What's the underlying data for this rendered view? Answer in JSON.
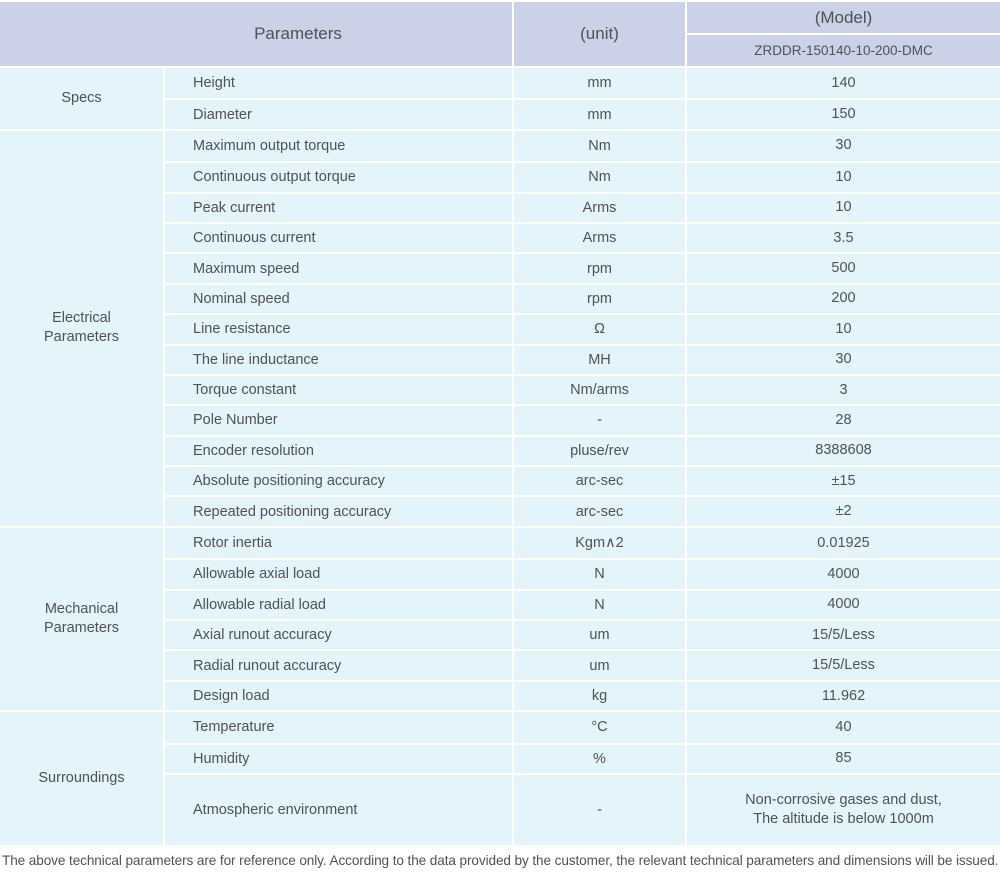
{
  "colors": {
    "header_bg": "#cbd1e7",
    "body_bg": "#e3f4fb",
    "grid": "#ffffff",
    "text": "#4f5256"
  },
  "table": {
    "header": {
      "parameters_label": "Parameters",
      "unit_label": "(unit)",
      "model_label": "(Model)",
      "model_value": "ZRDDR-150140-10-200-DMC"
    },
    "sections": [
      {
        "label_lines": [
          "Specs"
        ],
        "rows": [
          {
            "param": "Height",
            "unit": "mm",
            "value": "140"
          },
          {
            "param": "Diameter",
            "unit": "mm",
            "value": "150"
          }
        ]
      },
      {
        "label_lines": [
          "Electrical",
          "Parameters"
        ],
        "rows": [
          {
            "param": "Maximum output torque",
            "unit": "Nm",
            "value": "30"
          },
          {
            "param": "Continuous output torque",
            "unit": "Nm",
            "value": "10"
          },
          {
            "param": "Peak current",
            "unit": "Arms",
            "value": "10"
          },
          {
            "param": "Continuous current",
            "unit": "Arms",
            "value": "3.5"
          },
          {
            "param": "Maximum speed",
            "unit": "rpm",
            "value": "500"
          },
          {
            "param": "Nominal speed",
            "unit": "rpm",
            "value": "200"
          },
          {
            "param": "Line resistance",
            "unit": "Ω",
            "value": "10"
          },
          {
            "param": "The line inductance",
            "unit": "MH",
            "value": "30"
          },
          {
            "param": "Torque constant",
            "unit": "Nm/arms",
            "value": "3"
          },
          {
            "param": "Pole Number",
            "unit": "-",
            "value": "28"
          },
          {
            "param": "Encoder resolution",
            "unit": "pluse/rev",
            "value": "8388608"
          },
          {
            "param": "Absolute positioning accuracy",
            "unit": "arc-sec",
            "value": "±15"
          },
          {
            "param": "Repeated positioning accuracy",
            "unit": "arc-sec",
            "value": "±2"
          }
        ]
      },
      {
        "label_lines": [
          "Mechanical",
          "Parameters"
        ],
        "rows": [
          {
            "param": "Rotor inertia",
            "unit": "Kgm∧2",
            "value": "0.01925"
          },
          {
            "param": "Allowable axial load",
            "unit": "N",
            "value": "4000"
          },
          {
            "param": "Allowable radial load",
            "unit": "N",
            "value": "4000"
          },
          {
            "param": "Axial runout accuracy",
            "unit": "um",
            "value": "15/5/Less"
          },
          {
            "param": "Radial runout accuracy",
            "unit": "um",
            "value": "15/5/Less"
          },
          {
            "param": "Design load",
            "unit": "kg",
            "value": "11.962"
          }
        ]
      },
      {
        "label_lines": [
          "Surroundings"
        ],
        "rows": [
          {
            "param": "Temperature",
            "unit": "°C",
            "value": "40"
          },
          {
            "param": "Humidity",
            "unit": "%",
            "value": "85"
          },
          {
            "param": "Atmospheric environment",
            "unit": "-",
            "value_lines": [
              "Non-corrosive gases and dust,",
              "The altitude is below 1000m"
            ],
            "tall": true
          }
        ]
      }
    ]
  },
  "footer": {
    "note": "The above technical parameters are for reference only. According to the data provided by the customer, the relevant technical parameters and dimensions will be issued."
  }
}
